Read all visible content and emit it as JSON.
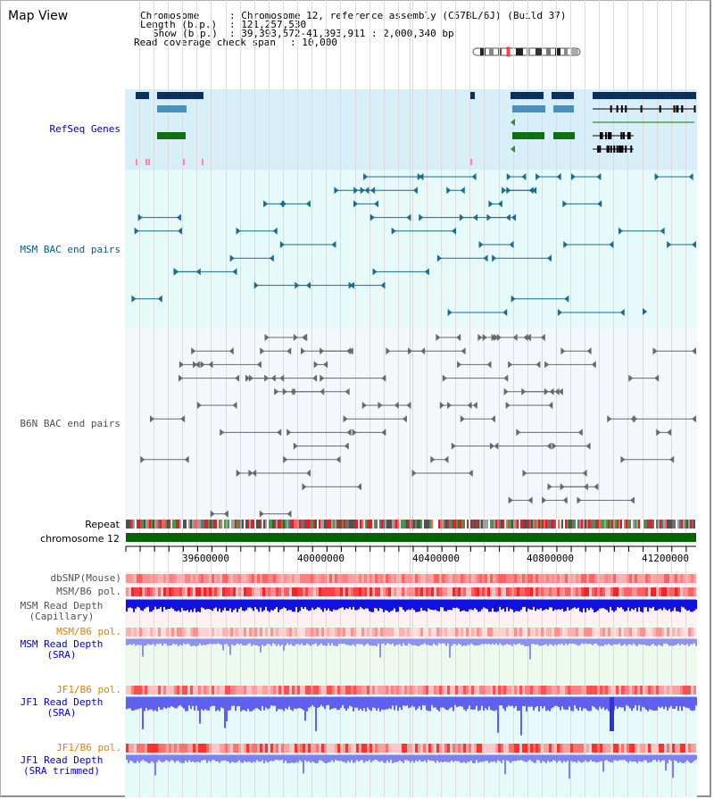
{
  "title": "Map View",
  "info": {
    "chromosome_label": "Chromosome",
    "chromosome_value": ": Chromosome 12, reference assembly (C57BL/6J) (Build 37)",
    "length_label": "Length (b.p.)",
    "length_value": ": 121,257,530",
    "show_label": "Show (b.p.)",
    "show_value": ": 39,393,572-41,393,911 : 2,000,340 bp",
    "coverage_label": "Read coverage check span",
    "coverage_value": ": 10,000"
  },
  "tracks": {
    "refseq": "RefSeq Genes",
    "msm_bac": "MSM BAC end pairs",
    "b6n_bac": "B6N BAC end pairs",
    "repeat": "Repeat",
    "chromosome": "chromosome 12",
    "dbsnp": "dbSNP(Mouse)",
    "msm_b6_pol": "MSM/B6 pol.",
    "msm_depth_cap_1": "MSM Read Depth",
    "msm_depth_cap_2": "(Capillary)",
    "msm_b6_pol_2": "MSM/B6 pol.",
    "msm_depth_sra_1": "MSM Read Depth",
    "msm_depth_sra_2": "(SRA)",
    "jf1_b6_pol": "JF1/B6 pol.",
    "jf1_depth_sra_1": "JF1 Read Depth",
    "jf1_depth_sra_2": "(SRA)",
    "jf1_b6_pol_2": "JF1/B6 pol.",
    "jf1_depth_trim_1": "JF1 Read Depth",
    "jf1_depth_trim_2": "(SRA trimmed)"
  },
  "axis_ticks": [
    "39600000",
    "40000000",
    "40400000",
    "40800000",
    "41200000"
  ],
  "colors": {
    "refseq_label": "#0000a0",
    "msm_label": "#006080",
    "b6n_label": "#505050",
    "orange_label": "#e08000",
    "blue_label": "#0000c0",
    "refseq_bg": "#d8eef9",
    "bac_bg": "#e6fafa",
    "b6n_bg": "#f4f6fb",
    "chromosome_bar": "#006400",
    "gene_dark": "#0a3060",
    "gene_mid": "#4a90b8",
    "gene_green": "#107010",
    "read_depth": "#0000e0",
    "pol_red": "#ff3030"
  }
}
